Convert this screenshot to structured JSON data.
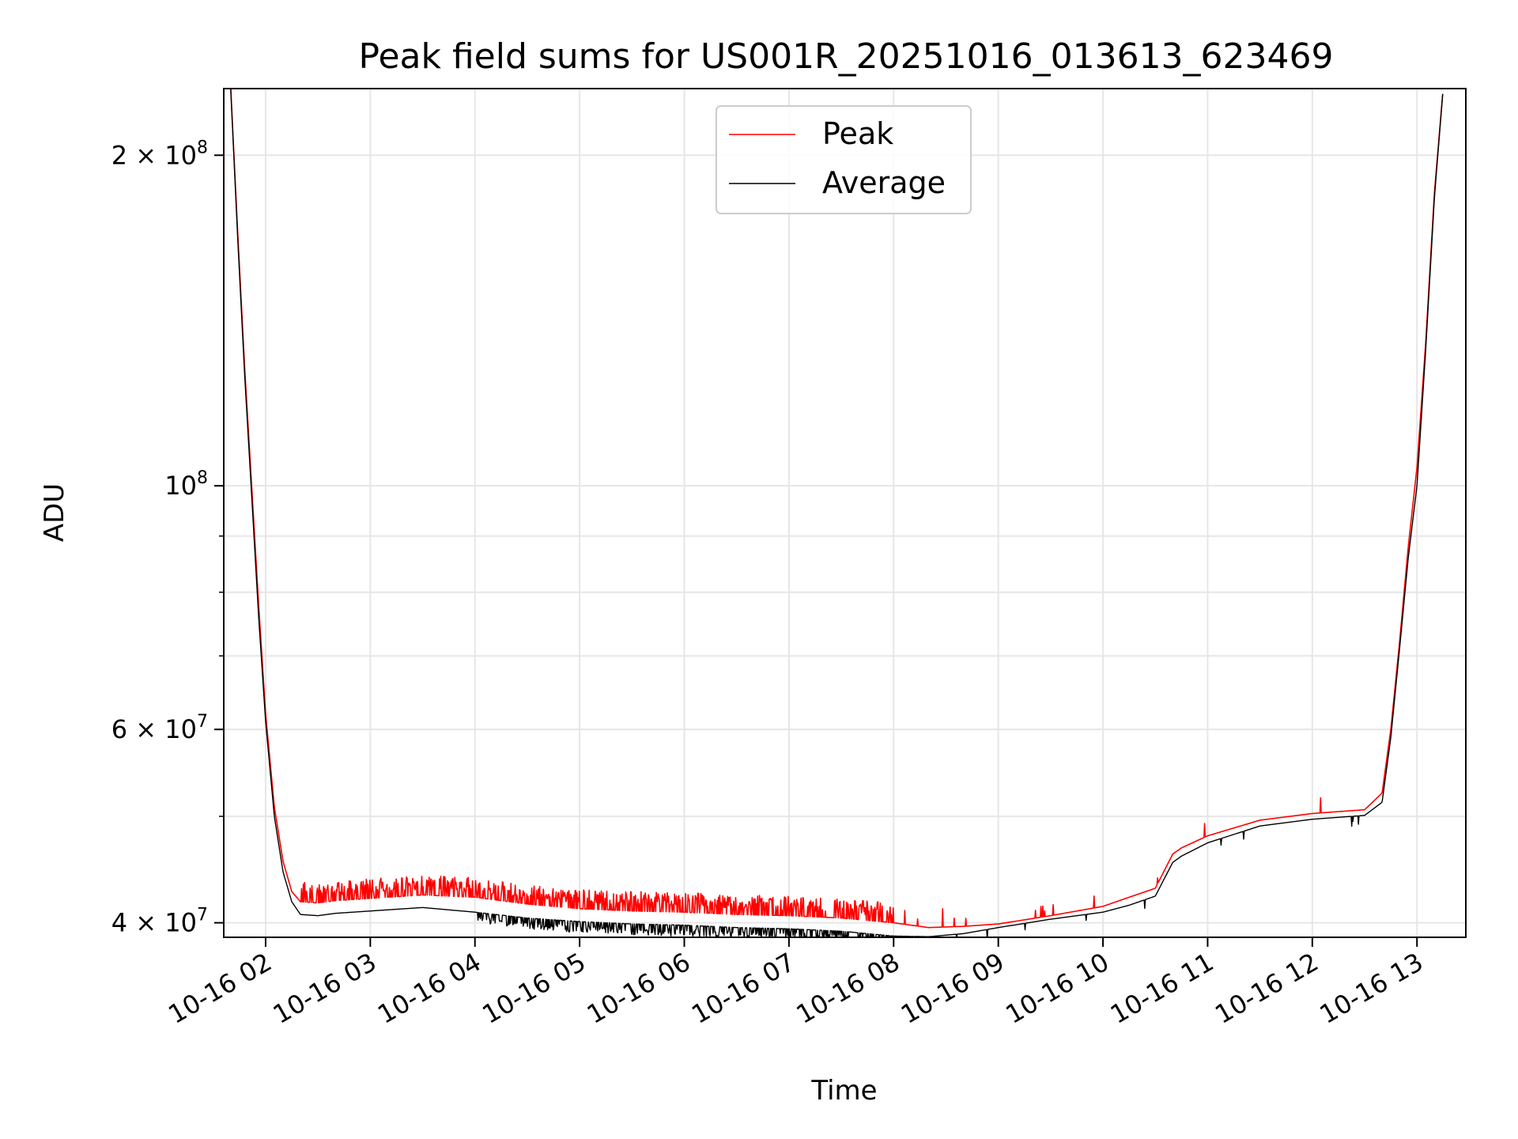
{
  "chart_data": {
    "type": "line",
    "title": "Peak field sums for US001R_20251016_013613_623469",
    "xlabel": "Time",
    "ylabel": "ADU",
    "y_scale": "log",
    "xlim": [
      "2025-10-16 01:36",
      "2025-10-16 13:28"
    ],
    "ylim": [
      38800000,
      230000000
    ],
    "grid": true,
    "legend_position": "top-center",
    "x_ticks": [
      {
        "time": "2025-10-16 02:00",
        "label": "10-16 02"
      },
      {
        "time": "2025-10-16 03:00",
        "label": "10-16 03"
      },
      {
        "time": "2025-10-16 04:00",
        "label": "10-16 04"
      },
      {
        "time": "2025-10-16 05:00",
        "label": "10-16 05"
      },
      {
        "time": "2025-10-16 06:00",
        "label": "10-16 06"
      },
      {
        "time": "2025-10-16 07:00",
        "label": "10-16 07"
      },
      {
        "time": "2025-10-16 08:00",
        "label": "10-16 08"
      },
      {
        "time": "2025-10-16 09:00",
        "label": "10-16 09"
      },
      {
        "time": "2025-10-16 10:00",
        "label": "10-16 10"
      },
      {
        "time": "2025-10-16 11:00",
        "label": "10-16 11"
      },
      {
        "time": "2025-10-16 12:00",
        "label": "10-16 12"
      },
      {
        "time": "2025-10-16 13:00",
        "label": "10-16 13"
      }
    ],
    "y_major_ticks": [
      {
        "value": 40000000,
        "mantissa": "4",
        "exponent": "7"
      },
      {
        "value": 60000000,
        "mantissa": "6",
        "exponent": "7"
      },
      {
        "value": 100000000,
        "mantissa": "",
        "exponent": "8"
      },
      {
        "value": 200000000,
        "mantissa": "2",
        "exponent": "8"
      }
    ],
    "y_minor_ticks": [
      50000000,
      70000000,
      80000000,
      90000000
    ],
    "series": [
      {
        "name": "Peak",
        "color": "#ff0000",
        "spike_times": [
          "2025-10-16 02:20",
          "2025-10-16 08:00"
        ],
        "x": [
          "2025-10-16 01:40",
          "2025-10-16 01:44",
          "2025-10-16 01:48",
          "2025-10-16 01:52",
          "2025-10-16 01:56",
          "2025-10-16 02:00",
          "2025-10-16 02:05",
          "2025-10-16 02:10",
          "2025-10-16 02:15",
          "2025-10-16 02:20",
          "2025-10-16 02:30",
          "2025-10-16 02:40",
          "2025-10-16 03:00",
          "2025-10-16 03:30",
          "2025-10-16 04:00",
          "2025-10-16 04:30",
          "2025-10-16 05:00",
          "2025-10-16 05:30",
          "2025-10-16 06:00",
          "2025-10-16 06:30",
          "2025-10-16 07:00",
          "2025-10-16 07:30",
          "2025-10-16 08:00",
          "2025-10-16 08:20",
          "2025-10-16 08:40",
          "2025-10-16 09:00",
          "2025-10-16 09:30",
          "2025-10-16 10:00",
          "2025-10-16 10:15",
          "2025-10-16 10:30",
          "2025-10-16 10:40",
          "2025-10-16 10:45",
          "2025-10-16 11:00",
          "2025-10-16 11:30",
          "2025-10-16 12:00",
          "2025-10-16 12:30",
          "2025-10-16 12:40",
          "2025-10-16 12:45",
          "2025-10-16 12:50",
          "2025-10-16 12:55",
          "2025-10-16 13:00",
          "2025-10-16 13:05",
          "2025-10-16 13:10",
          "2025-10-16 13:15"
        ],
        "values": [
          230000000,
          170000000,
          128000000,
          100000000,
          78000000,
          62000000,
          51000000,
          45500000,
          42700000,
          41800000,
          41700000,
          41900000,
          42100000,
          42400000,
          42200000,
          41600000,
          41200000,
          41000000,
          40900000,
          40700000,
          40600000,
          40400000,
          40000000,
          39600000,
          39700000,
          39900000,
          40600000,
          41400000,
          42200000,
          43000000,
          46200000,
          46800000,
          48000000,
          49600000,
          50300000,
          50700000,
          52500000,
          60000000,
          72000000,
          88000000,
          104000000,
          135000000,
          185000000,
          230000000
        ]
      },
      {
        "name": "Average",
        "color": "#000000",
        "spike_times": [
          "2025-10-16 04:00",
          "2025-10-16 08:00"
        ],
        "x": [
          "2025-10-16 01:40",
          "2025-10-16 01:44",
          "2025-10-16 01:48",
          "2025-10-16 01:52",
          "2025-10-16 01:56",
          "2025-10-16 02:00",
          "2025-10-16 02:05",
          "2025-10-16 02:10",
          "2025-10-16 02:15",
          "2025-10-16 02:20",
          "2025-10-16 02:30",
          "2025-10-16 02:40",
          "2025-10-16 03:00",
          "2025-10-16 03:30",
          "2025-10-16 04:00",
          "2025-10-16 04:30",
          "2025-10-16 05:00",
          "2025-10-16 05:30",
          "2025-10-16 06:00",
          "2025-10-16 06:30",
          "2025-10-16 07:00",
          "2025-10-16 07:30",
          "2025-10-16 08:00",
          "2025-10-16 08:20",
          "2025-10-16 08:40",
          "2025-10-16 09:00",
          "2025-10-16 09:30",
          "2025-10-16 10:00",
          "2025-10-16 10:15",
          "2025-10-16 10:30",
          "2025-10-16 10:40",
          "2025-10-16 10:45",
          "2025-10-16 11:00",
          "2025-10-16 11:30",
          "2025-10-16 12:00",
          "2025-10-16 12:30",
          "2025-10-16 12:40",
          "2025-10-16 12:45",
          "2025-10-16 12:50",
          "2025-10-16 12:55",
          "2025-10-16 13:00",
          "2025-10-16 13:05",
          "2025-10-16 13:10",
          "2025-10-16 13:15"
        ],
        "values": [
          230000000,
          168000000,
          126000000,
          98000000,
          76000000,
          61000000,
          50000000,
          44500000,
          41800000,
          40700000,
          40600000,
          40800000,
          41000000,
          41300000,
          40900000,
          40400000,
          40100000,
          39900000,
          39800000,
          39600000,
          39500000,
          39300000,
          38900000,
          38850000,
          39100000,
          39600000,
          40300000,
          40900000,
          41500000,
          42300000,
          45400000,
          46000000,
          47300000,
          49000000,
          49700000,
          50100000,
          51500000,
          59000000,
          71000000,
          86000000,
          100000000,
          133000000,
          183000000,
          230000000
        ]
      }
    ]
  }
}
